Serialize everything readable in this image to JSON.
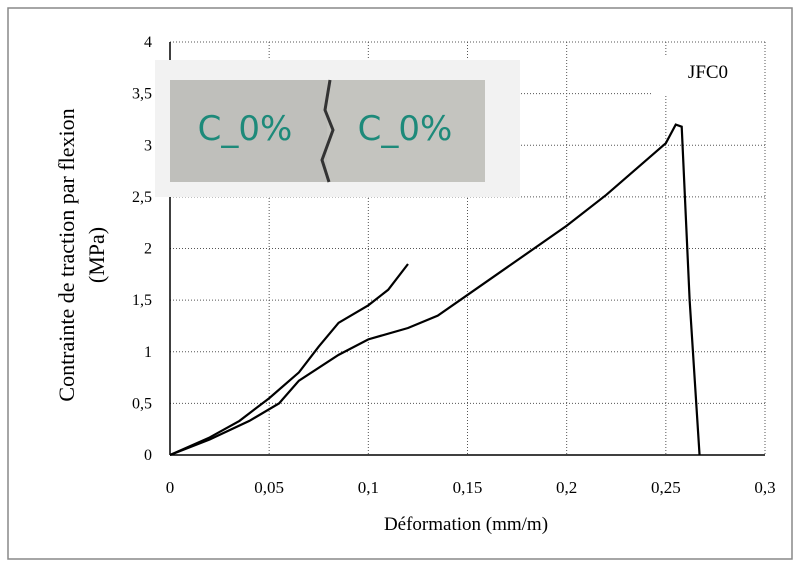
{
  "chart_data": {
    "type": "line",
    "annotation": "JFC0",
    "inset_labels": [
      "C_0%",
      "C_0%"
    ],
    "xlabel": "Déformation (mm/m)",
    "ylabel": [
      "Contrainte de traction par flexion",
      "(MPa)"
    ],
    "xlim": [
      0,
      0.3
    ],
    "ylim": [
      0,
      4
    ],
    "xticks": [
      {
        "value": 0,
        "label": "0"
      },
      {
        "value": 0.05,
        "label": "0,05"
      },
      {
        "value": 0.1,
        "label": "0,1"
      },
      {
        "value": 0.15,
        "label": "0,15"
      },
      {
        "value": 0.2,
        "label": "0,2"
      },
      {
        "value": 0.25,
        "label": "0,25"
      },
      {
        "value": 0.3,
        "label": "0,3"
      }
    ],
    "yticks": [
      0,
      {
        "value": 0.5,
        "label": "0,5"
      },
      1,
      {
        "value": 1.5,
        "label": "1,5"
      },
      2,
      {
        "value": 2.5,
        "label": "2,5"
      },
      3,
      {
        "value": 3.5,
        "label": "3,5"
      },
      4
    ],
    "grid": true,
    "series": [
      {
        "color": "#000000",
        "x": [
          0,
          0.02,
          0.035,
          0.05,
          0.065,
          0.075,
          0.085,
          0.1,
          0.11,
          0.12
        ],
        "values": [
          0,
          0.17,
          0.33,
          0.55,
          0.8,
          1.05,
          1.28,
          1.45,
          1.6,
          1.85
        ]
      },
      {
        "color": "#000000",
        "x": [
          0,
          0.02,
          0.04,
          0.055,
          0.065,
          0.085,
          0.1,
          0.12,
          0.135,
          0.15,
          0.2,
          0.22,
          0.25,
          0.255,
          0.258,
          0.262,
          0.267
        ],
        "values": [
          0,
          0.15,
          0.33,
          0.5,
          0.72,
          0.97,
          1.12,
          1.23,
          1.35,
          1.55,
          2.22,
          2.52,
          3.02,
          3.2,
          3.18,
          1.5,
          0
        ]
      }
    ]
  }
}
